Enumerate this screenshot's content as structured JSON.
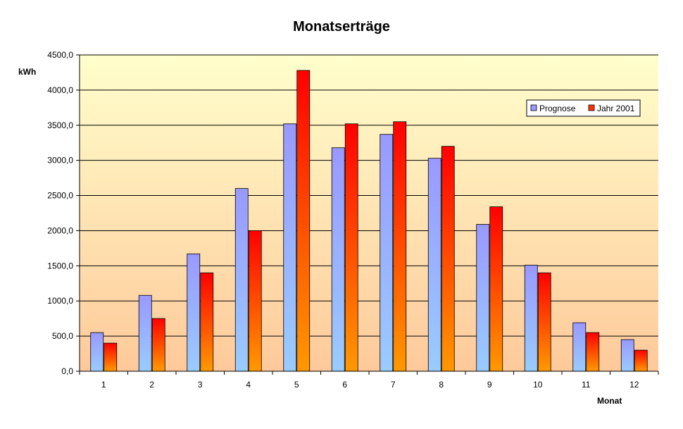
{
  "chart_data": {
    "type": "bar",
    "title": "Monatserträge",
    "ylabel": "kWh",
    "xlabel": "Monat",
    "categories": [
      "1",
      "2",
      "3",
      "4",
      "5",
      "6",
      "7",
      "8",
      "9",
      "10",
      "11",
      "12"
    ],
    "series": [
      {
        "name": "Prognose",
        "values": [
          550,
          1080,
          1670,
          2600,
          3520,
          3180,
          3370,
          3030,
          2090,
          1510,
          690,
          450
        ]
      },
      {
        "name": "Jahr 2001",
        "values": [
          400,
          750,
          1400,
          2000,
          4280,
          3520,
          3550,
          3200,
          2340,
          1400,
          550,
          300
        ]
      }
    ],
    "ylim": [
      0,
      4500
    ],
    "ytick_step": 500,
    "ytick_labels": [
      "0,0",
      "500,0",
      "1000,0",
      "1500,0",
      "2000,0",
      "2500,0",
      "3000,0",
      "3500,0",
      "4000,0",
      "4500,0"
    ],
    "grid": true,
    "legend_position": "top-right"
  }
}
